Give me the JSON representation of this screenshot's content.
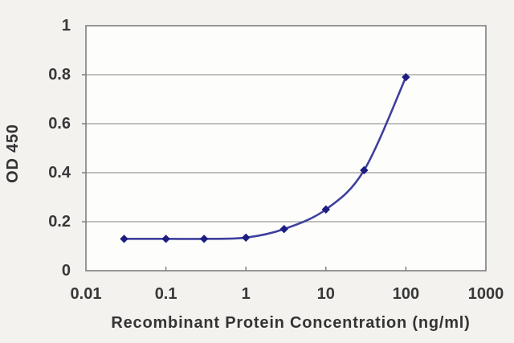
{
  "chart_data": {
    "type": "line",
    "title": "",
    "xlabel": "Recombinant Protein Concentration (ng/ml)",
    "ylabel": "OD 450",
    "xscale": "log",
    "xlim": [
      0.01,
      1000
    ],
    "ylim": [
      0,
      1
    ],
    "grid": "horizontal",
    "legend_position": "none",
    "xticks": [
      {
        "value": 0.01,
        "label": "0.01"
      },
      {
        "value": 0.1,
        "label": "0.1"
      },
      {
        "value": 1,
        "label": "1"
      },
      {
        "value": 10,
        "label": "10"
      },
      {
        "value": 100,
        "label": "100"
      },
      {
        "value": 1000,
        "label": "1000"
      }
    ],
    "yticks": [
      {
        "value": 0,
        "label": "0"
      },
      {
        "value": 0.2,
        "label": "0.2"
      },
      {
        "value": 0.4,
        "label": "0.4"
      },
      {
        "value": 0.6,
        "label": "0.6"
      },
      {
        "value": 0.8,
        "label": "0.8"
      },
      {
        "value": 1,
        "label": "1"
      }
    ],
    "series": [
      {
        "name": "OD 450",
        "x": [
          0.03,
          0.1,
          0.3,
          1,
          3,
          10,
          30,
          100
        ],
        "y": [
          0.13,
          0.13,
          0.13,
          0.135,
          0.17,
          0.25,
          0.41,
          0.79
        ],
        "marker": "diamond",
        "line_color": "#3f3f9f",
        "marker_color": "#1d1d82"
      }
    ]
  },
  "colors": {
    "background": "#f4f2ef",
    "plot_background": "#fdfdfb",
    "grid": "#9b9b9b",
    "frame": "#7f7f7f",
    "text": "#383838"
  }
}
